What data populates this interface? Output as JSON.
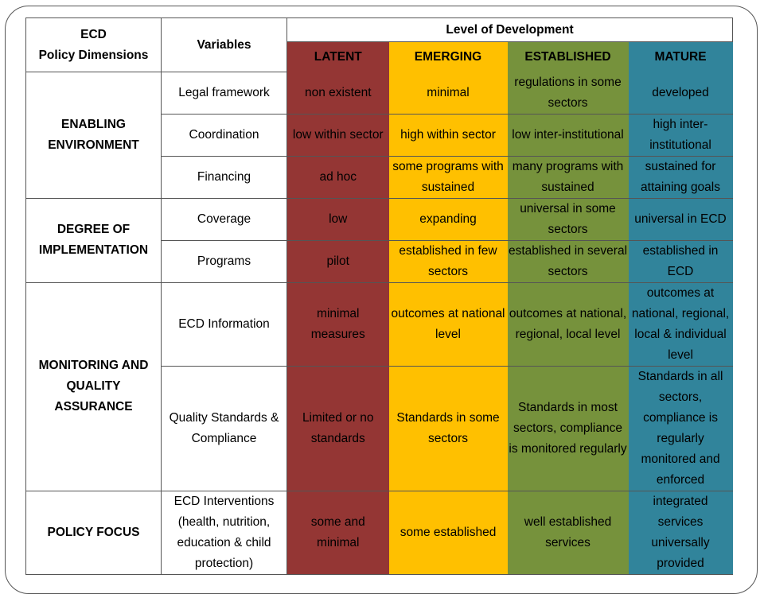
{
  "header": {
    "dim_line1": "ECD",
    "dim_line2": "Policy Dimensions",
    "variables": "Variables",
    "level_title": "Level of Development",
    "levels": [
      "LATENT",
      "EMERGING",
      "ESTABLISHED",
      "MATURE"
    ]
  },
  "dimensions": [
    {
      "name": "ENABLING ENVIRONMENT",
      "rows": [
        {
          "variable": "Legal framework",
          "cells": [
            "non existent",
            "minimal",
            "regulations in some sectors",
            "developed"
          ]
        },
        {
          "variable": "Coordination",
          "cells": [
            "low within sector",
            "high within sector",
            "low inter-institutional",
            "high inter-institutional"
          ]
        },
        {
          "variable": "Financing",
          "cells": [
            "ad hoc",
            "some programs with sustained",
            "many programs with sustained",
            "sustained for attaining goals"
          ]
        }
      ]
    },
    {
      "name": "DEGREE OF IMPLEMENTATION",
      "rows": [
        {
          "variable": "Coverage",
          "cells": [
            "low",
            "expanding",
            "universal in some sectors",
            "universal in ECD"
          ]
        },
        {
          "variable": "Programs",
          "cells": [
            "pilot",
            "established in few sectors",
            "established in several sectors",
            "established in ECD"
          ]
        }
      ]
    },
    {
      "name": "MONITORING AND QUALITY ASSURANCE",
      "rows": [
        {
          "variable": "ECD Information",
          "cells": [
            "minimal measures",
            "outcomes at national level",
            "outcomes at national, regional, local level",
            "outcomes at national, regional, local & individual level"
          ]
        },
        {
          "variable": "Quality Standards & Compliance",
          "cells": [
            "Limited or no standards",
            "Standards in some sectors",
            "Standards in most sectors, compliance is monitored regularly",
            "Standards in all sectors, compliance is regularly monitored and enforced"
          ]
        }
      ]
    },
    {
      "name": "POLICY FOCUS",
      "rows": [
        {
          "variable": "ECD Interventions (health, nutrition, education & child protection)",
          "cells": [
            "some and minimal",
            "some established",
            "well established services",
            "integrated services universally provided"
          ]
        }
      ]
    }
  ],
  "colors": {
    "latent": "#943634",
    "emerging": "#ffc000",
    "established": "#76923c",
    "mature": "#31849b"
  }
}
